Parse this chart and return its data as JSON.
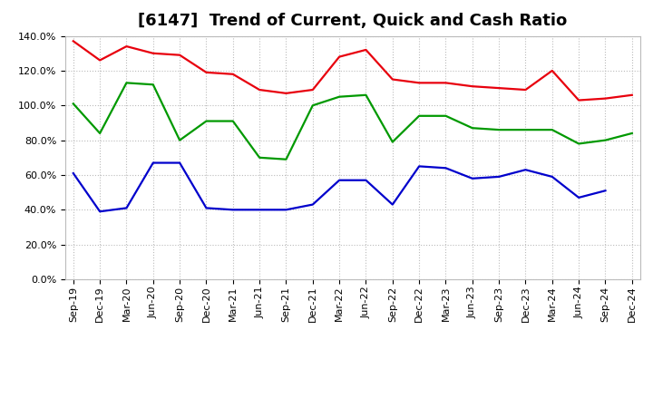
{
  "title": "[6147]  Trend of Current, Quick and Cash Ratio",
  "x_labels": [
    "Sep-19",
    "Dec-19",
    "Mar-20",
    "Jun-20",
    "Sep-20",
    "Dec-20",
    "Mar-21",
    "Jun-21",
    "Sep-21",
    "Dec-21",
    "Mar-22",
    "Jun-22",
    "Sep-22",
    "Dec-22",
    "Mar-23",
    "Jun-23",
    "Sep-23",
    "Dec-23",
    "Mar-24",
    "Jun-24",
    "Sep-24",
    "Dec-24"
  ],
  "current_ratio": [
    137,
    126,
    134,
    130,
    129,
    119,
    118,
    109,
    107,
    109,
    128,
    132,
    115,
    113,
    113,
    111,
    110,
    109,
    120,
    103,
    104,
    106
  ],
  "quick_ratio": [
    101,
    84,
    113,
    112,
    80,
    91,
    91,
    70,
    69,
    100,
    105,
    106,
    79,
    94,
    94,
    87,
    86,
    86,
    86,
    78,
    80,
    84
  ],
  "cash_ratio": [
    61,
    39,
    41,
    67,
    67,
    41,
    40,
    40,
    40,
    43,
    57,
    57,
    43,
    65,
    64,
    58,
    59,
    63,
    59,
    47,
    51,
    null
  ],
  "current_color": "#e8000d",
  "quick_color": "#009900",
  "cash_color": "#0000cc",
  "background_color": "#ffffff",
  "plot_bg_color": "#ffffff",
  "grid_color": "#aaaaaa",
  "ylim": [
    0,
    140
  ],
  "ytick_step": 20,
  "title_fontsize": 13,
  "legend_fontsize": 9.5,
  "tick_fontsize": 8,
  "line_width": 1.6
}
